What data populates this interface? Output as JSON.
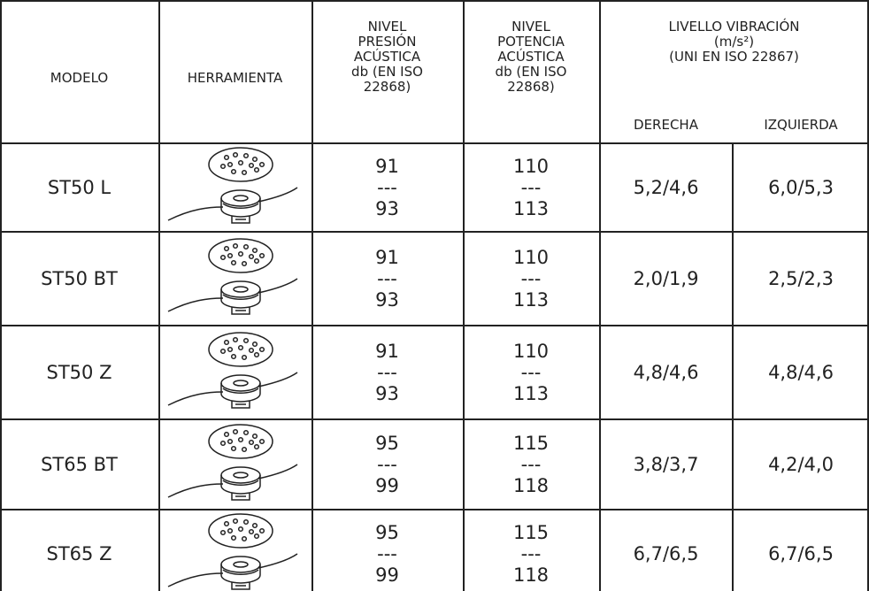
{
  "header": {
    "modelo": "MODELO",
    "herramienta": "HERRAMIENTA",
    "presion": [
      "NIVEL",
      "PRESIÓN",
      "ACÚSTICA",
      "db (EN ISO",
      "22868)"
    ],
    "potencia": [
      "NIVEL",
      "POTENCIA",
      "ACÚSTICA",
      "db (EN ISO",
      "22868)"
    ],
    "vibracion": [
      "LIVELLO VIBRACIÓN",
      "(m/s²)",
      "(UNI EN ISO 22867)"
    ],
    "derecha": "DERECHA",
    "izquierda": "IZQUIERDA"
  },
  "table": {
    "rows": [
      {
        "modelo": "ST50 L",
        "presion": [
          "91",
          "---",
          "93"
        ],
        "potencia": [
          "110",
          "---",
          "113"
        ],
        "derecha": "5,2/4,6",
        "izquierda": "6,0/5,3"
      },
      {
        "modelo": "ST50 BT",
        "presion": [
          "91",
          "---",
          "93"
        ],
        "potencia": [
          "110",
          "---",
          "113"
        ],
        "derecha": "2,0/1,9",
        "izquierda": "2,5/2,3"
      },
      {
        "modelo": "ST50 Z",
        "presion": [
          "91",
          "---",
          "93"
        ],
        "potencia": [
          "110",
          "---",
          "113"
        ],
        "derecha": "4,8/4,6",
        "izquierda": "4,8/4,6"
      },
      {
        "modelo": "ST65 BT",
        "presion": [
          "95",
          "---",
          "99"
        ],
        "potencia": [
          "115",
          "---",
          "118"
        ],
        "derecha": "3,8/3,7",
        "izquierda": "4,2/4,0"
      },
      {
        "modelo": "ST65 Z",
        "presion": [
          "95",
          "---",
          "99"
        ],
        "potencia": [
          "115",
          "---",
          "118"
        ],
        "derecha": "6,7/6,5",
        "izquierda": "6,7/6,5"
      }
    ]
  }
}
